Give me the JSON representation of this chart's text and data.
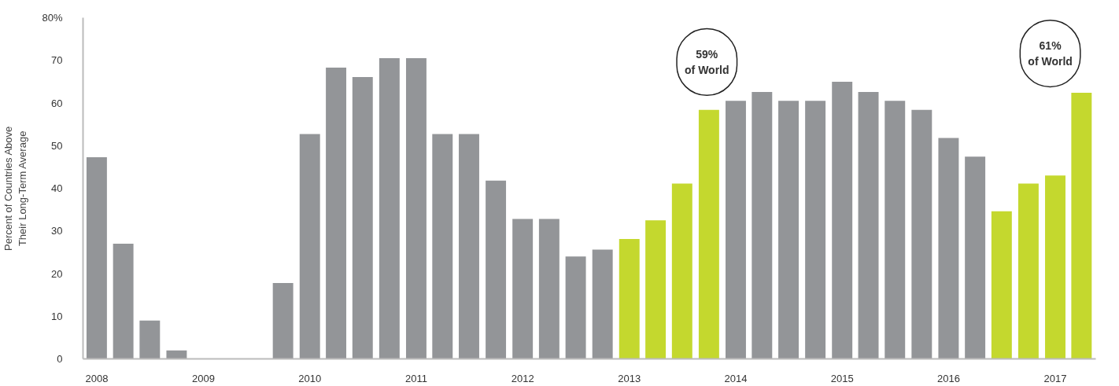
{
  "chart_data": {
    "type": "bar",
    "ylabel": "Percent of Countries Above\nTheir Long-Term Average",
    "x": [
      "2008-01",
      "2008-04",
      "2008-07",
      "2008-10",
      "2009-01",
      "2009-04",
      "2009-07",
      "2009-10",
      "2010-01",
      "2010-04",
      "2010-07",
      "2010-10",
      "2011-01",
      "2011-04",
      "2011-07",
      "2011-10",
      "2012-01",
      "2012-04",
      "2012-07",
      "2012-10",
      "2013-01",
      "2013-04",
      "2013-07",
      "2013-10",
      "2014-01",
      "2014-04",
      "2014-07",
      "2014-10",
      "2015-01",
      "2015-04",
      "2015-07",
      "2015-10",
      "2016-01",
      "2016-04",
      "2016-07",
      "2016-10",
      "2017-01",
      "2017-04"
    ],
    "values": [
      47.3,
      27,
      9,
      2,
      0,
      0,
      0,
      17.8,
      52.7,
      68.3,
      66.1,
      70.5,
      70.5,
      52.7,
      52.7,
      41.8,
      32.8,
      32.8,
      24,
      25.6,
      28.1,
      32.5,
      41.1,
      58.4,
      60.5,
      62.6,
      60.5,
      60.5,
      65,
      62.6,
      60.5,
      58.4,
      51.8,
      47.4,
      34.6,
      41.1,
      43,
      62.4
    ],
    "colors": [
      "#939598",
      "#939598",
      "#939598",
      "#939598",
      "#939598",
      "#939598",
      "#939598",
      "#939598",
      "#939598",
      "#939598",
      "#939598",
      "#939598",
      "#939598",
      "#939598",
      "#939598",
      "#939598",
      "#939598",
      "#939598",
      "#939598",
      "#939598",
      "#c4d82e",
      "#c4d82e",
      "#c4d82e",
      "#c4d82e",
      "#939598",
      "#939598",
      "#939598",
      "#939598",
      "#939598",
      "#939598",
      "#939598",
      "#939598",
      "#939598",
      "#939598",
      "#c4d82e",
      "#c4d82e",
      "#c4d82e",
      "#c4d82e"
    ],
    "xlim": [
      "2007-11-15",
      "2017-05-20"
    ],
    "xticks": [
      {
        "value": "2008",
        "label": "2008"
      },
      {
        "value": "2009",
        "label": "2009"
      },
      {
        "value": "2010",
        "label": "2010"
      },
      {
        "value": "2011",
        "label": "2011"
      },
      {
        "value": "2012",
        "label": "2012"
      },
      {
        "value": "2013",
        "label": "2013"
      },
      {
        "value": "2014",
        "label": "2014"
      },
      {
        "value": "2015",
        "label": "2015"
      },
      {
        "value": "2016",
        "label": "2016"
      },
      {
        "value": "2017",
        "label": "2017"
      }
    ],
    "ylim": [
      0,
      80
    ],
    "yticks": [
      0,
      10,
      20,
      30,
      40,
      50,
      60,
      70,
      {
        "value": 80,
        "label": "80%"
      }
    ],
    "grid": false,
    "annotations": [
      "59%\nof World",
      "61%\nof World"
    ]
  }
}
